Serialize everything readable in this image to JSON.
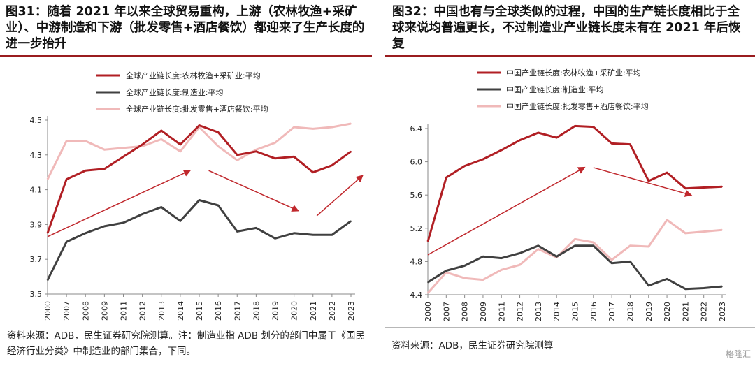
{
  "watermark": "格隆汇",
  "figures": [
    {
      "title": "图31：随着 2021 年以来全球贸易重构，上游（农林牧渔+采矿业）、中游制造和下游（批发零售+酒店餐饮）都迎来了生产长度的进一步抬升",
      "note": "资料来源：ADB，民生证券研究院测算。注：制造业指 ADB 划分的部门中属于《国民经济行业分类》中制造业的部门集合，下同。"
    },
    {
      "title": "图32：中国也有与全球类似的过程，中国的生产链长度相比于全球来说均普遍更长，不过制造业产业链长度未有在 2021 年后恢复",
      "note": "资料来源：ADB，民生证券研究院测算"
    }
  ],
  "chart_data": [
    {
      "type": "line",
      "categories": [
        "2000",
        "2007",
        "2008",
        "2009",
        "2011",
        "2012",
        "2013",
        "2014",
        "2015",
        "2016",
        "2017",
        "2018",
        "2019",
        "2020",
        "2021",
        "2022",
        "2023"
      ],
      "ylim": [
        3.5,
        4.5
      ],
      "yticks": [
        "3.5",
        "3.7",
        "3.9",
        "4.1",
        "4.3",
        "4.5"
      ],
      "legend_position": "top-left",
      "series": [
        {
          "name": "全球产业链长度:农林牧渔+采矿业:平均",
          "color": "#b11f24",
          "values": [
            3.85,
            4.16,
            4.21,
            4.22,
            4.29,
            4.36,
            4.44,
            4.36,
            4.47,
            4.43,
            4.3,
            4.32,
            4.28,
            4.29,
            4.2,
            4.24,
            4.32
          ]
        },
        {
          "name": "全球产业链长度:制造业:平均",
          "color": "#404040",
          "values": [
            3.58,
            3.8,
            3.85,
            3.89,
            3.91,
            3.96,
            4.0,
            3.92,
            4.04,
            4.01,
            3.86,
            3.88,
            3.82,
            3.85,
            3.84,
            3.84,
            3.92
          ]
        },
        {
          "name": "全球产业链长度:批发零售+酒店餐饮:平均",
          "color": "#f0b9b9",
          "values": [
            4.16,
            4.38,
            4.38,
            4.33,
            4.34,
            4.35,
            4.39,
            4.32,
            4.46,
            4.35,
            4.27,
            4.33,
            4.37,
            4.46,
            4.45,
            4.46,
            4.48
          ]
        }
      ],
      "trend_arrows": [
        {
          "from": [
            0,
            3.83
          ],
          "to": [
            7.5,
            4.21
          ]
        },
        {
          "from": [
            8.5,
            4.21
          ],
          "to": [
            13.2,
            3.98
          ]
        },
        {
          "from": [
            14.2,
            3.95
          ],
          "to": [
            16.6,
            4.18
          ]
        }
      ]
    },
    {
      "type": "line",
      "categories": [
        "2000",
        "2007",
        "2008",
        "2009",
        "2011",
        "2012",
        "2013",
        "2014",
        "2015",
        "2016",
        "2017",
        "2018",
        "2019",
        "2020",
        "2021",
        "2022",
        "2023"
      ],
      "ylim": [
        4.4,
        6.4
      ],
      "yticks": [
        "4.4",
        "4.8",
        "5.2",
        "5.6",
        "6.0",
        "6.4"
      ],
      "legend_position": "top-left",
      "series": [
        {
          "name": "中国产业链长度:农林牧渔+采矿业:平均",
          "color": "#b11f24",
          "values": [
            5.04,
            5.81,
            5.95,
            6.03,
            6.14,
            6.26,
            6.35,
            6.29,
            6.43,
            6.42,
            6.22,
            6.21,
            5.77,
            5.87,
            5.68,
            5.69,
            5.7
          ]
        },
        {
          "name": "中国产业链长度:制造业:平均",
          "color": "#404040",
          "values": [
            4.55,
            4.69,
            4.75,
            4.86,
            4.84,
            4.9,
            4.99,
            4.86,
            4.99,
            4.99,
            4.78,
            4.8,
            4.51,
            4.59,
            4.47,
            4.48,
            4.5
          ]
        },
        {
          "name": "中国产业链长度:批发零售+酒店餐饮:平均",
          "color": "#f0b9b9",
          "values": [
            4.42,
            4.67,
            4.6,
            4.58,
            4.7,
            4.76,
            4.95,
            4.85,
            5.07,
            5.03,
            4.82,
            4.99,
            4.98,
            5.3,
            5.14,
            5.16,
            5.18
          ]
        }
      ],
      "trend_arrows": [
        {
          "from": [
            0,
            4.88
          ],
          "to": [
            8.5,
            5.93
          ]
        },
        {
          "from": [
            9.0,
            5.93
          ],
          "to": [
            14.3,
            5.6
          ]
        }
      ]
    }
  ]
}
